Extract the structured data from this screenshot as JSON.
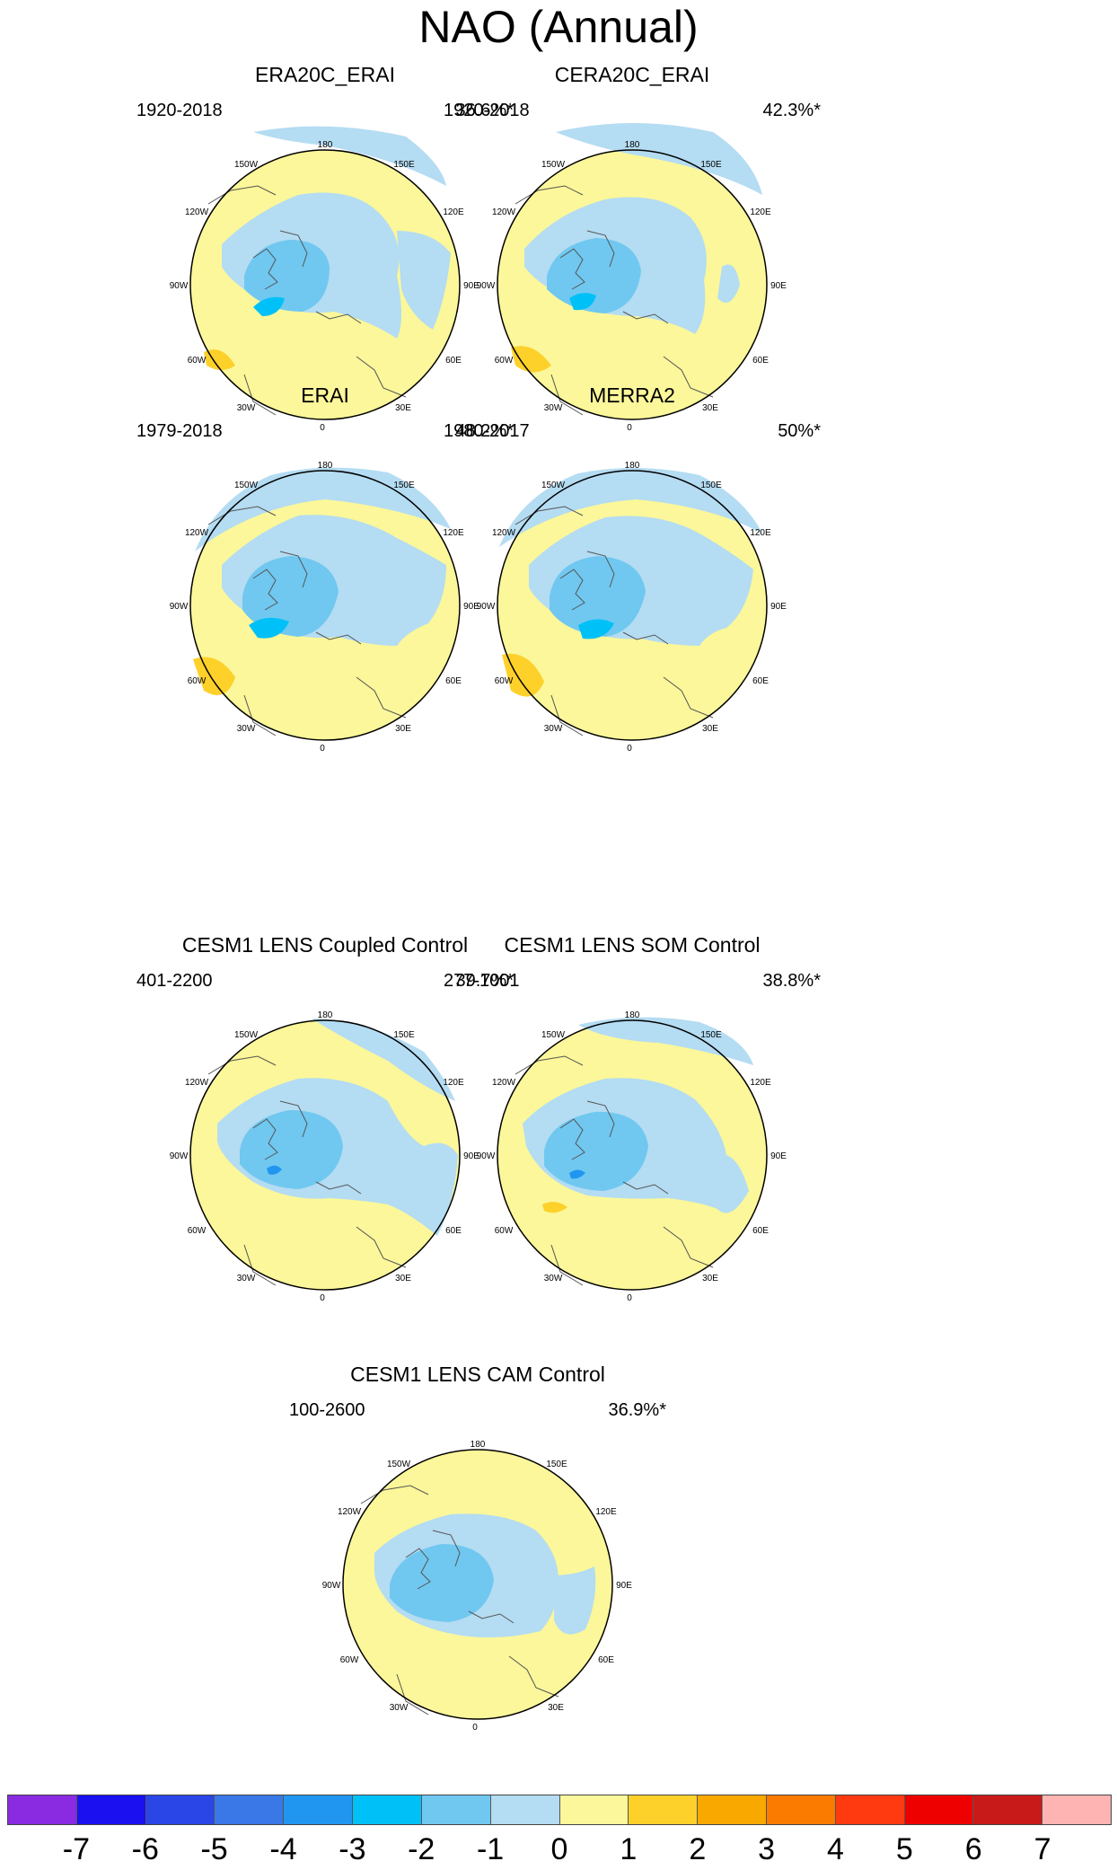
{
  "title": "NAO (Annual)",
  "panels": [
    {
      "title": "ERA20C_ERAI",
      "period": "1920-2018",
      "variance": "36.6%*"
    },
    {
      "title": "CERA20C_ERAI",
      "period": "1920-2018",
      "variance": "42.3%*"
    },
    {
      "title": "ERAI",
      "period": "1979-2018",
      "variance": "48.2%*"
    },
    {
      "title": "MERRA2",
      "period": "1980-2017",
      "variance": "50%*"
    },
    {
      "title": "CESM1 LENS Coupled Control",
      "period": "401-2200",
      "variance": "39.7%*"
    },
    {
      "title": "CESM1 LENS SOM Control",
      "period": "277-1001",
      "variance": "38.8%*"
    },
    {
      "title": "CESM1 LENS CAM Control",
      "period": "100-2600",
      "variance": "36.9%*"
    }
  ],
  "longitude_labels": [
    "0",
    "30E",
    "60E",
    "90E",
    "120E",
    "150E",
    "180",
    "150W",
    "120W",
    "90W",
    "60W",
    "30W"
  ],
  "colorbar": {
    "colors": [
      "#8a2be2",
      "#1a10f0",
      "#2a46e6",
      "#3a78e8",
      "#2196f0",
      "#00c0f8",
      "#70c8f0",
      "#b4dcf2",
      "#fbf79a",
      "#fdd02a",
      "#f9a800",
      "#fb7a00",
      "#ff3a10",
      "#ee0000",
      "#c91a1a",
      "#ffb4b4"
    ],
    "tick_labels": [
      "-7",
      "-6",
      "-5",
      "-4",
      "-3",
      "-2",
      "-1",
      "0",
      "1",
      "2",
      "3",
      "4",
      "5",
      "6",
      "7"
    ]
  }
}
